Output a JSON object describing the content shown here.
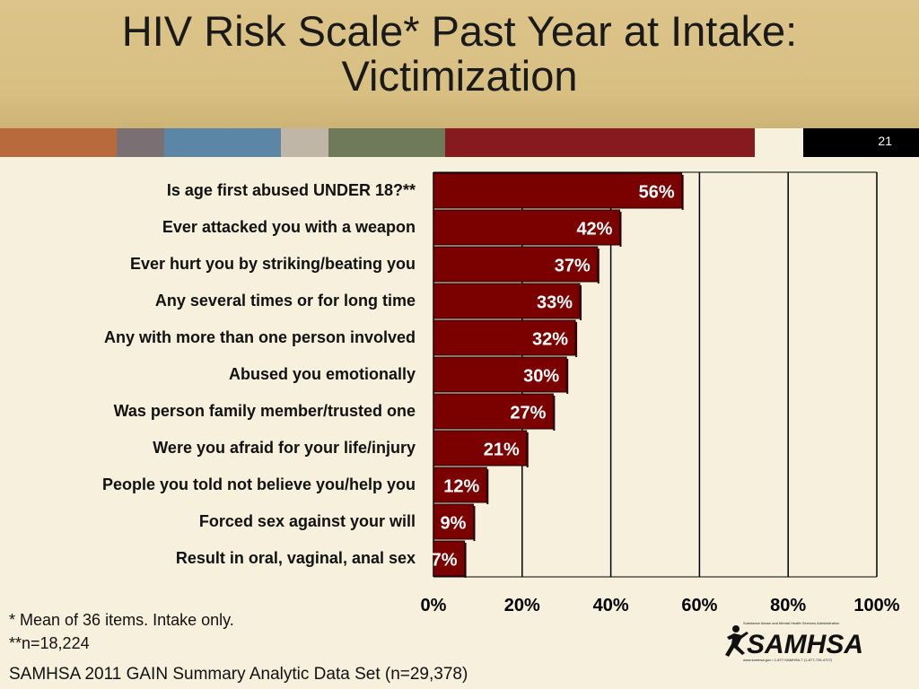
{
  "slide": {
    "title_line1": "HIV Risk Scale* Past Year at Intake:",
    "title_line2": "Victimization",
    "slide_number": "21",
    "stripe_colors": [
      "#b86a3c",
      "#7a6f72",
      "#5b86a6",
      "#bfb6a8",
      "#6e7a5a",
      "#861a1e"
    ],
    "footnote1": "* Mean of 36 items. Intake only.",
    "footnote2": "**n=18,224",
    "source": "SAMHSA 2011 GAIN Summary Analytic Data Set (n=29,378)",
    "logo_text": "SAMHSA",
    "logo_tagline": "Substance Abuse and Mental Health Services Administration",
    "logo_contact": "www.samhsa.gov • 1-877-SAMHSA-7 (1-877-726-4727)"
  },
  "chart_data": {
    "type": "bar",
    "orientation": "horizontal",
    "categories": [
      "Is age first abused UNDER 18?**",
      "Ever attacked you with a weapon",
      "Ever hurt you by striking/beating you",
      "Any several times or for long time",
      "Any with more than one person involved",
      "Abused you emotionally",
      "Was person family member/trusted one",
      "Were you afraid for your life/injury",
      "People you told not believe you/help you",
      "Forced sex against your will",
      "Result in oral, vaginal, anal sex"
    ],
    "values": [
      56,
      42,
      37,
      33,
      32,
      30,
      27,
      21,
      12,
      9,
      7
    ],
    "data_labels": [
      "56%",
      "42%",
      "37%",
      "33%",
      "32%",
      "30%",
      "27%",
      "21%",
      "12%",
      "9%",
      "7%"
    ],
    "xlim": [
      0,
      100
    ],
    "xticks": [
      "0%",
      "20%",
      "40%",
      "60%",
      "80%",
      "100%"
    ],
    "grid": true,
    "bar_color": "#7b0000"
  }
}
